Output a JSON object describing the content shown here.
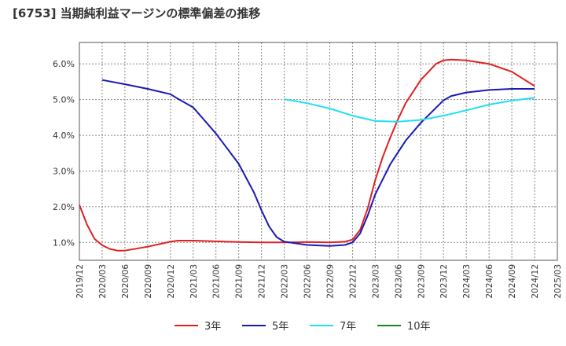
{
  "title": "[6753]  当期純利益マージンの標準偏差の推移",
  "chart_data": {
    "type": "line",
    "x_ticks": [
      "2019/12",
      "2020/03",
      "2020/06",
      "2020/09",
      "2020/12",
      "2021/03",
      "2021/06",
      "2021/09",
      "2021/12",
      "2022/03",
      "2022/06",
      "2022/09",
      "2022/12",
      "2023/03",
      "2023/06",
      "2023/09",
      "2023/12",
      "2024/03",
      "2024/06",
      "2024/09",
      "2024/12",
      "2025/03"
    ],
    "y_ticks": [
      "1.0%",
      "2.0%",
      "3.0%",
      "4.0%",
      "5.0%",
      "6.0%"
    ],
    "ylim": [
      0.5,
      6.6
    ],
    "grid": true,
    "legend_position": "bottom",
    "series": [
      {
        "name": "3年",
        "color": "#e02020",
        "points": [
          [
            "2019/12",
            2.05
          ],
          [
            "2020/01",
            1.5
          ],
          [
            "2020/02",
            1.1
          ],
          [
            "2020/03",
            0.92
          ],
          [
            "2020/04",
            0.82
          ],
          [
            "2020/05",
            0.77
          ],
          [
            "2020/06",
            0.77
          ],
          [
            "2020/09",
            0.88
          ],
          [
            "2020/12",
            1.02
          ],
          [
            "2021/01",
            1.05
          ],
          [
            "2021/03",
            1.05
          ],
          [
            "2021/06",
            1.03
          ],
          [
            "2021/09",
            1.01
          ],
          [
            "2021/12",
            1.0
          ],
          [
            "2022/03",
            1.0
          ],
          [
            "2022/06",
            1.01
          ],
          [
            "2022/09",
            1.0
          ],
          [
            "2022/11",
            1.02
          ],
          [
            "2022/12",
            1.08
          ],
          [
            "2023/01",
            1.35
          ],
          [
            "2023/02",
            1.95
          ],
          [
            "2023/03",
            2.75
          ],
          [
            "2023/04",
            3.4
          ],
          [
            "2023/05",
            3.95
          ],
          [
            "2023/06",
            4.45
          ],
          [
            "2023/07",
            4.9
          ],
          [
            "2023/09",
            5.55
          ],
          [
            "2023/11",
            6.0
          ],
          [
            "2023/12",
            6.1
          ],
          [
            "2024/01",
            6.12
          ],
          [
            "2024/03",
            6.1
          ],
          [
            "2024/06",
            6.0
          ],
          [
            "2024/09",
            5.78
          ],
          [
            "2024/12",
            5.38
          ]
        ]
      },
      {
        "name": "5年",
        "color": "#1a1ab4",
        "points": [
          [
            "2020/03",
            5.55
          ],
          [
            "2020/06",
            5.43
          ],
          [
            "2020/09",
            5.3
          ],
          [
            "2020/12",
            5.15
          ],
          [
            "2021/01",
            5.02
          ],
          [
            "2021/03",
            4.78
          ],
          [
            "2021/06",
            4.05
          ],
          [
            "2021/09",
            3.2
          ],
          [
            "2021/11",
            2.4
          ],
          [
            "2021/12",
            1.9
          ],
          [
            "2022/01",
            1.45
          ],
          [
            "2022/02",
            1.15
          ],
          [
            "2022/03",
            1.02
          ],
          [
            "2022/06",
            0.93
          ],
          [
            "2022/09",
            0.9
          ],
          [
            "2022/11",
            0.93
          ],
          [
            "2022/12",
            1.0
          ],
          [
            "2023/01",
            1.25
          ],
          [
            "2023/02",
            1.75
          ],
          [
            "2023/03",
            2.35
          ],
          [
            "2023/05",
            3.2
          ],
          [
            "2023/07",
            3.85
          ],
          [
            "2023/09",
            4.35
          ],
          [
            "2023/11",
            4.77
          ],
          [
            "2023/12",
            4.98
          ],
          [
            "2024/01",
            5.1
          ],
          [
            "2024/03",
            5.2
          ],
          [
            "2024/06",
            5.27
          ],
          [
            "2024/09",
            5.3
          ],
          [
            "2024/12",
            5.3
          ]
        ]
      },
      {
        "name": "7年",
        "color": "#20e0f0",
        "points": [
          [
            "2022/03",
            5.01
          ],
          [
            "2022/06",
            4.9
          ],
          [
            "2022/09",
            4.75
          ],
          [
            "2022/12",
            4.55
          ],
          [
            "2023/03",
            4.4
          ],
          [
            "2023/06",
            4.38
          ],
          [
            "2023/09",
            4.43
          ],
          [
            "2023/12",
            4.55
          ],
          [
            "2024/03",
            4.7
          ],
          [
            "2024/06",
            4.86
          ],
          [
            "2024/09",
            4.97
          ],
          [
            "2024/12",
            5.05
          ]
        ]
      },
      {
        "name": "10年",
        "color": "#208020",
        "points": []
      }
    ]
  }
}
